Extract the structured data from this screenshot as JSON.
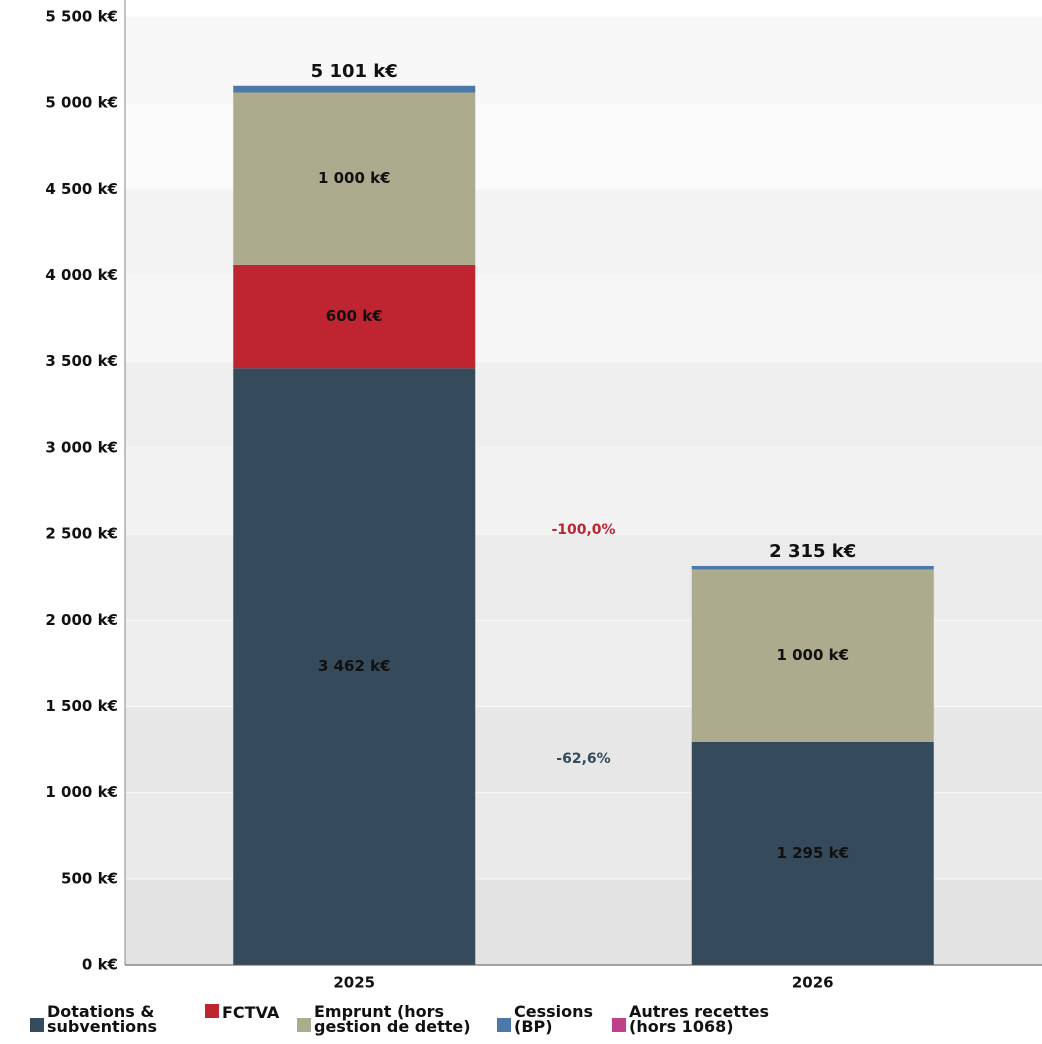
{
  "chart_data": {
    "type": "stacked-bar",
    "categories": [
      "2025",
      "2026"
    ],
    "series": [
      {
        "name": "Dotations & subventions",
        "color": "#354b5b",
        "values": [
          3462,
          1295
        ],
        "value_labels": [
          "3 462 k€",
          "1 295 k€"
        ]
      },
      {
        "name": "FCTVA",
        "color": "#be2531",
        "values": [
          600,
          0
        ],
        "value_labels": [
          "600 k€",
          null
        ]
      },
      {
        "name": "Emprunt (hors gestion de dette)",
        "color": "#acab8e",
        "values": [
          1000,
          1000
        ],
        "value_labels": [
          "1 000 k€",
          "1 000 k€"
        ]
      },
      {
        "name": "Cessions (BP)",
        "color": "#4a78a8",
        "values": [
          39,
          20
        ],
        "value_labels": [
          null,
          null
        ]
      },
      {
        "name": "Autres recettes (hors 1068)",
        "color": "#c0408a",
        "values": [
          0,
          0
        ],
        "value_labels": [
          null,
          null
        ]
      }
    ],
    "totals": {
      "values": [
        5101,
        2315
      ],
      "value_labels": [
        "5 101 k€",
        "2 315 k€"
      ]
    },
    "annotations": [
      {
        "text": "-100,0%",
        "color": "#be2531"
      },
      {
        "text": "-62,6%",
        "color": "#354b5b"
      }
    ],
    "ylim": [
      0,
      5500
    ],
    "yticks": [
      {
        "value": 0,
        "label": "0 k€"
      },
      {
        "value": 500,
        "label": "500 k€"
      },
      {
        "value": 1000,
        "label": "1 000 k€"
      },
      {
        "value": 1500,
        "label": "1 500 k€"
      },
      {
        "value": 2000,
        "label": "2 000 k€"
      },
      {
        "value": 2500,
        "label": "2 500 k€"
      },
      {
        "value": 3000,
        "label": "3 000 k€"
      },
      {
        "value": 3500,
        "label": "3 500 k€"
      },
      {
        "value": 4000,
        "label": "4 000 k€"
      },
      {
        "value": 4500,
        "label": "4 500 k€"
      },
      {
        "value": 5000,
        "label": "5 000 k€"
      },
      {
        "value": 5500,
        "label": "5 500 k€"
      }
    ],
    "grid": true
  }
}
